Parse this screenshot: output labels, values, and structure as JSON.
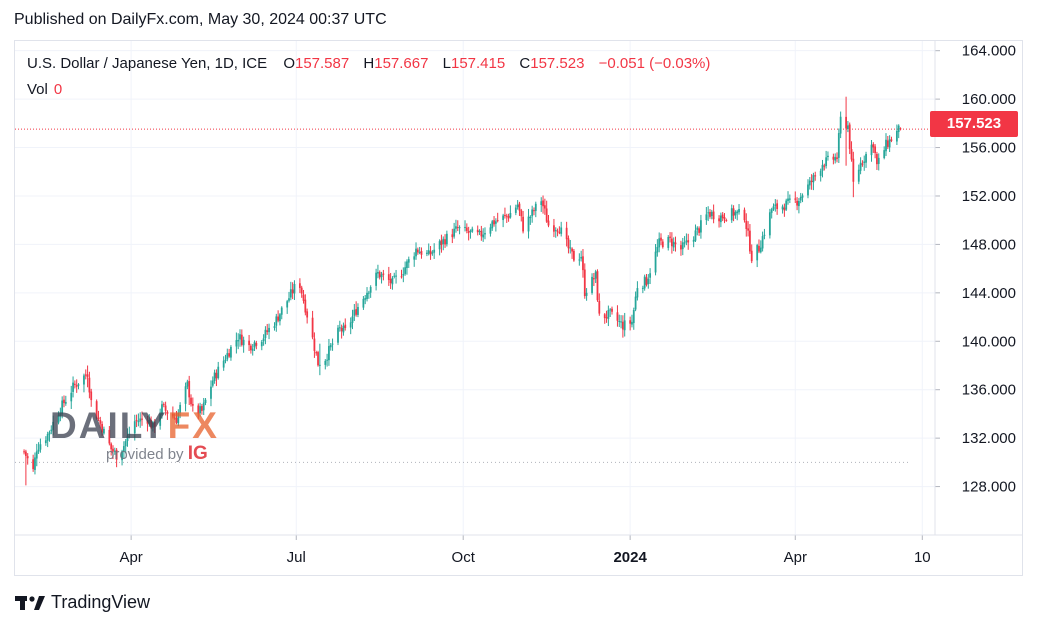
{
  "header": {
    "published": "Published on DailyFx.com, May 30, 2024 00:37 UTC"
  },
  "legend": {
    "symbol": "U.S. Dollar / Japanese Yen, 1D, ICE",
    "open_label": "O",
    "open": "157.587",
    "high_label": "H",
    "high": "157.667",
    "low_label": "L",
    "low": "157.415",
    "close_label": "C",
    "close": "157.523",
    "change": "−0.051 (−0.03%)",
    "vol_label": "Vol",
    "vol": "0"
  },
  "price_tag": "157.523",
  "watermark": {
    "brand_a": "DAILY",
    "brand_b": "FX",
    "provided_by": "provided by",
    "ig": "IG"
  },
  "footer": {
    "brand": "TradingView"
  },
  "colors": {
    "up": "#26a69a",
    "down": "#f23645",
    "grid": "#f0f3fa",
    "axis_text": "#131722"
  },
  "chart_data": {
    "type": "candlestick",
    "title": "U.S. Dollar / Japanese Yen, 1D, ICE",
    "ylim": [
      124,
      164.8
    ],
    "yticks": [
      "164.000",
      "160.000",
      "156.000",
      "152.000",
      "148.000",
      "144.000",
      "140.000",
      "136.000",
      "132.000",
      "128.000"
    ],
    "ytick_values": [
      164,
      160,
      156,
      152,
      148,
      144,
      140,
      136,
      132,
      128
    ],
    "xticks": [
      "Apr",
      "Jul",
      "Oct",
      "2024",
      "Apr",
      "10"
    ],
    "xtick_dates": [
      "2023-04-01",
      "2023-07-01",
      "2023-10-01",
      "2024-01-01",
      "2024-04-01",
      "2024-06-10"
    ],
    "x_range": [
      "2023-01-27",
      "2024-06-17"
    ],
    "last_close": 157.523,
    "reference_level": 130.0,
    "series_start": "2023-02-01",
    "close_path": [
      [
        "2023-02-01",
        130.9
      ],
      [
        "2023-02-06",
        129.3
      ],
      [
        "2023-02-08",
        131.2
      ],
      [
        "2023-02-14",
        132.3
      ],
      [
        "2023-02-20",
        134.2
      ],
      [
        "2023-02-28",
        136.2
      ],
      [
        "2023-03-08",
        137.4
      ],
      [
        "2023-03-10",
        135.0
      ],
      [
        "2023-03-15",
        133.2
      ],
      [
        "2023-03-21",
        131.1
      ],
      [
        "2023-03-24",
        130.6
      ],
      [
        "2023-03-28",
        131.4
      ],
      [
        "2023-04-03",
        133.4
      ],
      [
        "2023-04-10",
        133.6
      ],
      [
        "2023-04-13",
        132.9
      ],
      [
        "2023-04-18",
        134.5
      ],
      [
        "2023-04-26",
        133.6
      ],
      [
        "2023-05-02",
        136.4
      ],
      [
        "2023-05-05",
        134.3
      ],
      [
        "2023-05-10",
        134.2
      ],
      [
        "2023-05-16",
        136.8
      ],
      [
        "2023-05-23",
        138.7
      ],
      [
        "2023-05-30",
        140.4
      ],
      [
        "2023-06-05",
        139.6
      ],
      [
        "2023-06-13",
        140.4
      ],
      [
        "2023-06-20",
        141.8
      ],
      [
        "2023-06-30",
        144.4
      ],
      [
        "2023-07-03",
        144.7
      ],
      [
        "2023-07-07",
        142.2
      ],
      [
        "2023-07-13",
        138.2
      ],
      [
        "2023-07-17",
        138.6
      ],
      [
        "2023-07-25",
        141.0
      ],
      [
        "2023-07-28",
        140.8
      ],
      [
        "2023-08-03",
        142.6
      ],
      [
        "2023-08-10",
        144.4
      ],
      [
        "2023-08-15",
        145.6
      ],
      [
        "2023-08-23",
        144.8
      ],
      [
        "2023-08-29",
        145.9
      ],
      [
        "2023-09-05",
        147.6
      ],
      [
        "2023-09-12",
        147.1
      ],
      [
        "2023-09-20",
        148.3
      ],
      [
        "2023-09-28",
        149.3
      ],
      [
        "2023-10-03",
        149.0
      ],
      [
        "2023-10-10",
        148.7
      ],
      [
        "2023-10-17",
        149.8
      ],
      [
        "2023-10-26",
        150.4
      ],
      [
        "2023-10-31",
        151.3
      ],
      [
        "2023-11-03",
        149.4
      ],
      [
        "2023-11-13",
        151.7
      ],
      [
        "2023-11-17",
        149.6
      ],
      [
        "2023-11-23",
        149.4
      ],
      [
        "2023-11-29",
        147.3
      ],
      [
        "2023-12-01",
        146.9
      ],
      [
        "2023-12-05",
        147.1
      ],
      [
        "2023-12-07",
        144.1
      ],
      [
        "2023-12-13",
        145.4
      ],
      [
        "2023-12-15",
        142.0
      ],
      [
        "2023-12-21",
        142.2
      ],
      [
        "2023-12-28",
        141.3
      ],
      [
        "2024-01-02",
        141.6
      ],
      [
        "2024-01-05",
        144.6
      ],
      [
        "2024-01-10",
        145.0
      ],
      [
        "2024-01-17",
        148.1
      ],
      [
        "2024-01-23",
        148.3
      ],
      [
        "2024-01-29",
        147.6
      ],
      [
        "2024-02-02",
        148.2
      ],
      [
        "2024-02-08",
        149.3
      ],
      [
        "2024-02-13",
        150.6
      ],
      [
        "2024-02-20",
        150.3
      ],
      [
        "2024-02-27",
        150.6
      ],
      [
        "2024-03-04",
        150.4
      ],
      [
        "2024-03-08",
        147.0
      ],
      [
        "2024-03-12",
        147.7
      ],
      [
        "2024-03-19",
        150.9
      ],
      [
        "2024-03-27",
        151.3
      ],
      [
        "2024-04-02",
        151.6
      ],
      [
        "2024-04-10",
        153.2
      ],
      [
        "2024-04-16",
        154.7
      ],
      [
        "2024-04-24",
        155.2
      ],
      [
        "2024-04-26",
        158.3
      ],
      [
        "2024-04-30",
        157.8
      ],
      [
        "2024-05-03",
        153.0
      ],
      [
        "2024-05-07",
        154.7
      ],
      [
        "2024-05-14",
        156.4
      ],
      [
        "2024-05-16",
        154.5
      ],
      [
        "2024-05-21",
        156.2
      ],
      [
        "2024-05-29",
        157.6
      ]
    ],
    "notable_candles": [
      {
        "date": "2023-02-02",
        "high": 129.2,
        "low": 128.1
      },
      {
        "date": "2023-03-08",
        "high": 138.0,
        "low": 136.2
      },
      {
        "date": "2023-03-24",
        "high": 131.1,
        "low": 129.6
      },
      {
        "date": "2023-07-03",
        "high": 145.1,
        "low": 144.3
      },
      {
        "date": "2023-07-14",
        "high": 139.8,
        "low": 137.2
      },
      {
        "date": "2023-11-13",
        "high": 151.9,
        "low": 150.8
      },
      {
        "date": "2023-12-28",
        "high": 141.8,
        "low": 140.3
      },
      {
        "date": "2024-03-08",
        "high": 148.0,
        "low": 146.5
      },
      {
        "date": "2024-04-29",
        "high": 160.2,
        "low": 154.5
      },
      {
        "date": "2024-05-03",
        "high": 153.8,
        "low": 151.9
      }
    ]
  }
}
